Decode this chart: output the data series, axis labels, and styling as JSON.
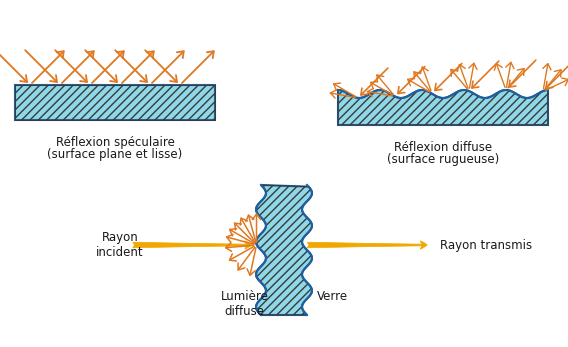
{
  "bg_color": "#ffffff",
  "arrow_color": "#E07820",
  "glass_face_color": "#8ED8E8",
  "glass_edge_color": "#2060A0",
  "hatch_color": "#3a3a3a",
  "text_color": "#1a1a1a",
  "label_left_title": "Réflexion spéculaire",
  "label_left_sub": "(surface plane et lisse)",
  "label_right_title": "Réflexion diffuse",
  "label_right_sub": "(surface rugueuse)",
  "label_incident": "Rayon\nincident",
  "label_transmis": "Rayon transmis",
  "label_diffuse": "Lumière\ndiffuse",
  "label_verre": "Verre",
  "yellow_color": "#F0A800"
}
